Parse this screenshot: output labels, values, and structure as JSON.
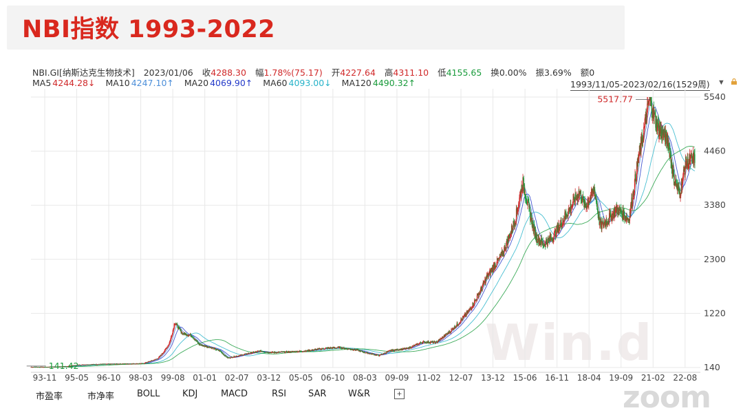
{
  "header": {
    "title": "NBI指数 1993-2022"
  },
  "quote": {
    "name": "NBI.GI[纳斯达克生物技术]",
    "date": "2023/01/06",
    "close_label": "收",
    "close": "4288.30",
    "change_label": "幅",
    "change": "1.78%(75.17)",
    "open_label": "开",
    "open": "4227.64",
    "high_label": "高",
    "high": "4311.10",
    "low_label": "低",
    "low": "4155.65",
    "turnover_label": "换",
    "turnover": "0.00%",
    "amplitude_label": "振",
    "amplitude": "3.69%",
    "amount_label": "额",
    "amount": "0"
  },
  "ma": [
    {
      "label": "MA5",
      "value": "4244.28↓",
      "color": "#d0292a"
    },
    {
      "label": "MA10",
      "value": "4247.10↑",
      "color": "#4d8fd9"
    },
    {
      "label": "MA20",
      "value": "4069.90↑",
      "color": "#2339c9"
    },
    {
      "label": "MA60",
      "value": "4093.00↓",
      "color": "#27b3c9"
    },
    {
      "label": "MA120",
      "value": "4490.32↑",
      "color": "#199b3b"
    }
  ],
  "range_label": "1993/11/05-2023/02/16(1529周)",
  "tabs": [
    "市盈率",
    "市净率",
    "BOLL",
    "KDJ",
    "MACD",
    "RSI",
    "SAR",
    "W&R"
  ],
  "watermarks": {
    "wind": "Win.d",
    "zoom": "zoom"
  },
  "chart_data": {
    "type": "line",
    "subtype": "weekly candlestick with moving averages",
    "y_scale": "log",
    "y_ticks": [
      140,
      1220,
      2300,
      3380,
      4460,
      5540
    ],
    "ylim": [
      140,
      5540
    ],
    "x_tick_labels": [
      "93-11",
      "95-05",
      "96-10",
      "98-03",
      "99-08",
      "01-01",
      "02-07",
      "03-12",
      "05-05",
      "06-10",
      "08-03",
      "09-09",
      "11-02",
      "12-07",
      "13-12",
      "15-06",
      "16-11",
      "18-04",
      "19-09",
      "21-02",
      "22-08"
    ],
    "annotations": {
      "max": "5517.77",
      "min": "141.42"
    },
    "colors": {
      "up": "#d0292a",
      "down": "#199b3b",
      "grid": "#e8e8e8"
    },
    "series": [
      {
        "name": "NBI",
        "points": [
          [
            "1993-11",
            150
          ],
          [
            "1994-06",
            148
          ],
          [
            "1995-05",
            160
          ],
          [
            "1995-12",
            190
          ],
          [
            "1996-10",
            205
          ],
          [
            "1997-06",
            210
          ],
          [
            "1998-03",
            215
          ],
          [
            "1998-10",
            220
          ],
          [
            "1999-06",
            320
          ],
          [
            "1999-12",
            620
          ],
          [
            "2000-03",
            1050
          ],
          [
            "2000-07",
            820
          ],
          [
            "2000-12",
            780
          ],
          [
            "2001-04",
            600
          ],
          [
            "2001-10",
            540
          ],
          [
            "2002-03",
            470
          ],
          [
            "2002-07",
            330
          ],
          [
            "2002-12",
            370
          ],
          [
            "2003-06",
            420
          ],
          [
            "2003-12",
            470
          ],
          [
            "2004-06",
            440
          ],
          [
            "2005-05",
            455
          ],
          [
            "2005-12",
            470
          ],
          [
            "2006-10",
            520
          ],
          [
            "2007-06",
            540
          ],
          [
            "2008-03",
            490
          ],
          [
            "2008-10",
            420
          ],
          [
            "2009-03",
            380
          ],
          [
            "2009-09",
            480
          ],
          [
            "2010-06",
            520
          ],
          [
            "2011-02",
            650
          ],
          [
            "2011-09",
            640
          ],
          [
            "2012-07",
            950
          ],
          [
            "2013-03",
            1300
          ],
          [
            "2013-12",
            1950
          ],
          [
            "2014-08",
            2400
          ],
          [
            "2015-03",
            3100
          ],
          [
            "2015-07",
            3850
          ],
          [
            "2016-02",
            2750
          ],
          [
            "2016-06",
            2600
          ],
          [
            "2016-11",
            2750
          ],
          [
            "2017-06",
            3200
          ],
          [
            "2018-01",
            3650
          ],
          [
            "2018-04",
            3350
          ],
          [
            "2018-09",
            3700
          ],
          [
            "2018-12",
            2950
          ],
          [
            "2019-09",
            3300
          ],
          [
            "2020-03",
            3100
          ],
          [
            "2020-08",
            4300
          ],
          [
            "2021-02",
            5517.77
          ],
          [
            "2021-06",
            4950
          ],
          [
            "2021-12",
            4650
          ],
          [
            "2022-03",
            3900
          ],
          [
            "2022-06",
            3600
          ],
          [
            "2022-09",
            4200
          ],
          [
            "2023-01",
            4288.3
          ]
        ]
      }
    ]
  }
}
